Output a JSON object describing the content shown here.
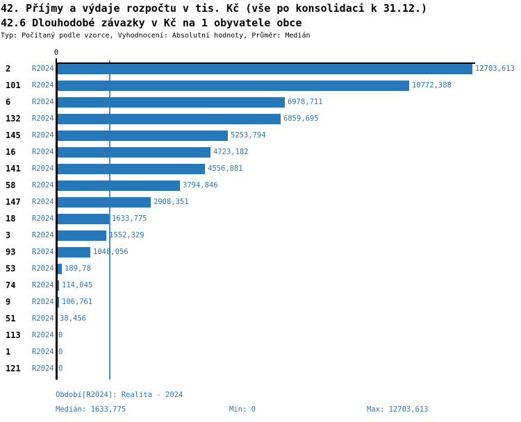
{
  "title": {
    "line1": "42. Příjmy a výdaje rozpočtu v tis. Kč (vše po konsolidaci k 31.12.)",
    "line2": "42.6 Dlouhodobé závazky v Kč na 1 obyvatele obce",
    "meta": "Typ: Počítaný podle vzorce, Vyhodnocení: Absolutní hodnoty, Průměr: Medián"
  },
  "chart_data": {
    "type": "bar",
    "orientation": "horizontal",
    "series_label": "R2024",
    "categories": [
      "2",
      "101",
      "6",
      "132",
      "145",
      "16",
      "141",
      "58",
      "147",
      "18",
      "3",
      "93",
      "53",
      "74",
      "9",
      "51",
      "113",
      "1",
      "121"
    ],
    "values": [
      12703.613,
      10772.388,
      6978.711,
      6859.695,
      5253.794,
      4723.182,
      4556.881,
      3794.846,
      2908.351,
      1633.775,
      1552.329,
      1048.056,
      189.78,
      114.045,
      106.761,
      38.456,
      0,
      0,
      0
    ],
    "value_labels": [
      "12703,613",
      "10772,388",
      "6978,711",
      "6859,695",
      "5253,794",
      "4723,182",
      "4556,881",
      "3794,846",
      "2908,351",
      "1633,775",
      "1552,329",
      "1048,056",
      "189,78",
      "114,045",
      "106,761",
      "38,456",
      "0",
      "0",
      "0"
    ],
    "xlim": [
      0,
      12703.613
    ],
    "x_axis_zero_label": "0",
    "median_line_value": 1633.775,
    "grid": "median-line-only",
    "legend": "none",
    "colors": {
      "bar": "#2878b9",
      "text_blue": "#2878b9",
      "gridline": "#4a90c2",
      "axis": "#000000"
    }
  },
  "footer": {
    "period": "Období[R2024]: Realita - 2024",
    "median": "Medián: 1633,775",
    "min": "Min: 0",
    "max": "Max: 12703,613"
  }
}
